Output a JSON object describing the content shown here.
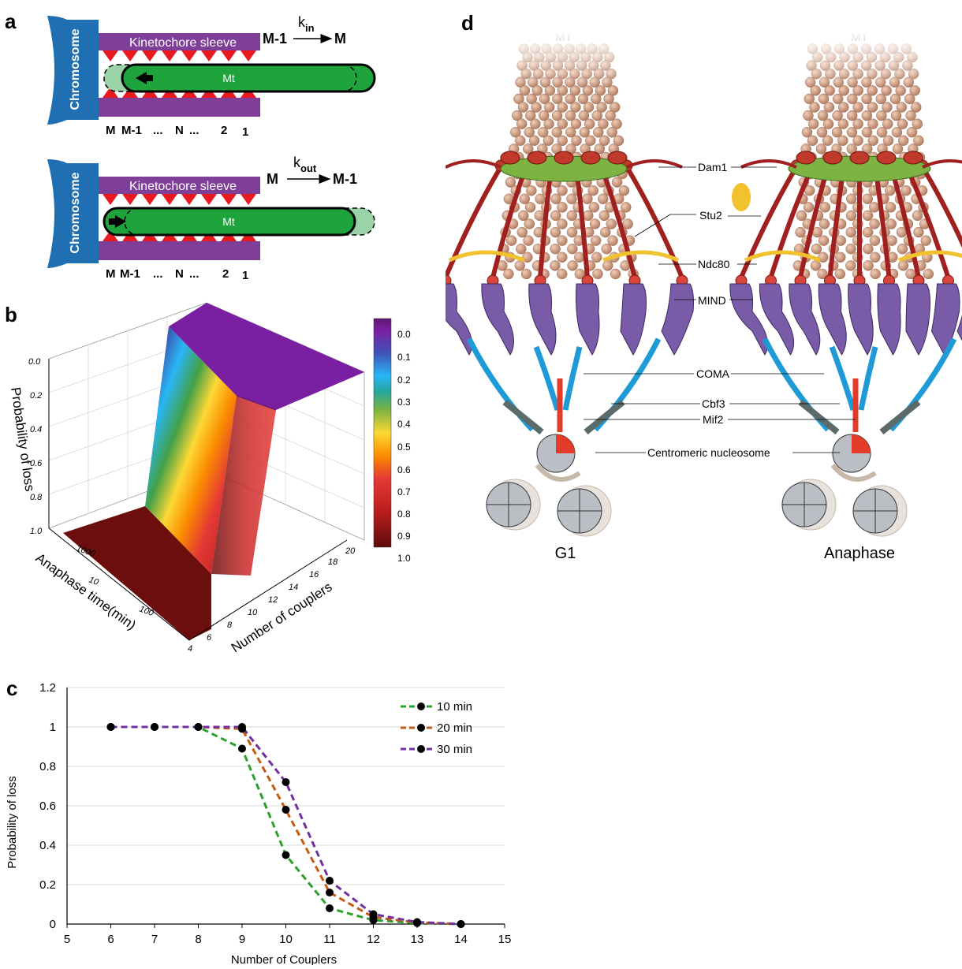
{
  "panel_a": {
    "letter": "a",
    "chromosome_label": "Chromosome",
    "sleeve_label": "Kinetochore sleeve",
    "mt_label": "Mt",
    "positions": [
      "M",
      "M-1",
      "...",
      "N",
      "...",
      "2",
      "1"
    ],
    "top": {
      "from": "M-1",
      "rate": "k",
      "rate_sub": "in",
      "to": "M"
    },
    "bottom": {
      "from": "M",
      "rate": "k",
      "rate_sub": "out",
      "to": "M-1"
    },
    "colors": {
      "chromosome": "#1f6fb2",
      "sleeve": "#7f3f98",
      "teeth": "#e8191f",
      "mt": "#1fa33c",
      "mt_ghost": "#9ad3a8"
    }
  },
  "panel_b": {
    "letter": "b",
    "zlabel": "Probability of loss",
    "xlabel": "Number of couplers",
    "ylabel": "Anaphase time(min)",
    "zticks": [
      "0.0",
      "0.2",
      "0.4",
      "0.6",
      "0.8",
      "1.0"
    ],
    "xticks": [
      "4",
      "6",
      "8",
      "10",
      "12",
      "14",
      "16",
      "18",
      "20"
    ],
    "yticks": [
      "10",
      "100",
      "1000"
    ],
    "colorbar_ticks": [
      "0.0",
      "0.1",
      "0.2",
      "0.3",
      "0.4",
      "0.5",
      "0.6",
      "0.7",
      "0.8",
      "0.9",
      "1.0"
    ]
  },
  "panel_c": {
    "letter": "c",
    "chart_data": {
      "type": "line",
      "xlabel": "Number of Couplers",
      "ylabel": "Probability of loss",
      "xlim": [
        5,
        15
      ],
      "ylim": [
        0,
        1.2
      ],
      "xticks": [
        "5",
        "6",
        "7",
        "8",
        "9",
        "10",
        "11",
        "12",
        "13",
        "14",
        "15"
      ],
      "yticks": [
        "0",
        "0.2",
        "0.4",
        "0.6",
        "0.8",
        "1",
        "1.2"
      ],
      "x": [
        6,
        7,
        8,
        9,
        10,
        11,
        12,
        13,
        14
      ],
      "legend_position": "top-right",
      "grid": true,
      "series": [
        {
          "name": "10 min",
          "color": "#2ca02c",
          "values": [
            1,
            1,
            1,
            0.89,
            0.35,
            0.08,
            0.02,
            0.005,
            0.0
          ]
        },
        {
          "name": "20 min",
          "color": "#c55a11",
          "values": [
            1,
            1,
            1,
            0.99,
            0.58,
            0.16,
            0.035,
            0.008,
            0.0
          ]
        },
        {
          "name": "30 min",
          "color": "#7030a0",
          "values": [
            1,
            1,
            1,
            1.0,
            0.72,
            0.22,
            0.05,
            0.01,
            0.0
          ]
        }
      ]
    }
  },
  "panel_d": {
    "letter": "d",
    "mt_label_left": "MT",
    "mt_label_right": "MT",
    "labels": [
      "Dam1",
      "Stu2",
      "Ndc80",
      "MIND",
      "COMA",
      "Cbf3",
      "Mif2",
      "Centromeric nucleosome"
    ],
    "g1_label": "G1",
    "anaphase_label": "Anaphase",
    "colors": {
      "mt": "#c9957a",
      "dam1": "#7cb342",
      "ndc80": "#a0201f",
      "stu2": "#f2c12e",
      "mind": "#7a5ba8",
      "coma": "#1e9bd7",
      "cbf3": "#5b6b6b",
      "mif2": "#e23b2a",
      "nucleosome": "#c7b8a8"
    }
  }
}
